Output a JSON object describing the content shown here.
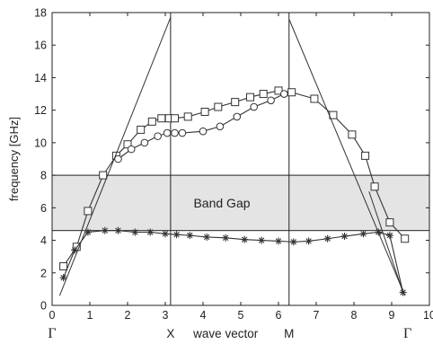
{
  "chart_data": {
    "type": "line",
    "title": "",
    "xlabel": "wave vector",
    "ylabel": "frequency [GHz]",
    "xlim": [
      0,
      10
    ],
    "ylim": [
      0,
      18
    ],
    "x_ticks": [
      "0",
      "1",
      "2",
      "3",
      "4",
      "5",
      "6",
      "7",
      "8",
      "9",
      "10"
    ],
    "y_ticks": [
      "0",
      "2",
      "4",
      "6",
      "8",
      "10",
      "12",
      "14",
      "16",
      "18"
    ],
    "symmetry_points": [
      {
        "label": "Γ",
        "x": 0
      },
      {
        "label": "X",
        "x": 3.14
      },
      {
        "label": "M",
        "x": 6.28
      },
      {
        "label": "Γ",
        "x": 9.42
      }
    ],
    "band_gap": {
      "label": "Band Gap",
      "y_min": 4.6,
      "y_max": 8.0
    },
    "vertical_lines": [
      3.14,
      6.28
    ],
    "series": [
      {
        "name": "",
        "marker": "square",
        "x": [
          0.3,
          0.65,
          0.95,
          1.35,
          1.7,
          2.0,
          2.35,
          2.65,
          2.9,
          3.1,
          3.25,
          3.6,
          4.05,
          4.4,
          4.85,
          5.25,
          5.6,
          6.0,
          6.35,
          6.95,
          7.45,
          7.95,
          8.3,
          8.55,
          8.95,
          9.35
        ],
        "y": [
          2.4,
          3.6,
          5.8,
          8.0,
          9.2,
          9.9,
          10.8,
          11.3,
          11.5,
          11.5,
          11.5,
          11.6,
          11.9,
          12.2,
          12.5,
          12.8,
          13.0,
          13.2,
          13.1,
          12.7,
          11.7,
          10.5,
          9.2,
          7.3,
          5.1,
          4.1
        ]
      },
      {
        "name": "",
        "marker": "circle",
        "x": [
          1.75,
          2.1,
          2.45,
          2.8,
          3.05,
          3.25,
          3.45,
          4.0,
          4.45,
          4.9,
          5.35,
          5.8,
          6.15
        ],
        "y": [
          9.0,
          9.6,
          10.0,
          10.4,
          10.6,
          10.6,
          10.6,
          10.7,
          11.0,
          11.6,
          12.2,
          12.6,
          13.0
        ]
      },
      {
        "name": "",
        "marker": "star",
        "x": [
          0.3,
          0.6,
          0.95,
          1.4,
          1.75,
          2.2,
          2.6,
          3.0,
          3.3,
          3.65,
          4.1,
          4.6,
          5.1,
          5.55,
          6.0,
          6.4,
          6.8,
          7.3,
          7.75,
          8.25,
          8.65,
          8.95,
          9.3
        ],
        "y": [
          1.7,
          3.4,
          4.5,
          4.6,
          4.6,
          4.5,
          4.5,
          4.4,
          4.35,
          4.3,
          4.2,
          4.15,
          4.05,
          4.0,
          3.95,
          3.9,
          3.95,
          4.1,
          4.25,
          4.4,
          4.5,
          4.3,
          0.8
        ]
      },
      {
        "name": "",
        "marker": "none",
        "x": [
          0.2,
          3.14
        ],
        "y": [
          0.6,
          17.7
        ]
      },
      {
        "name": "",
        "marker": "none",
        "x": [
          6.28,
          9.35
        ],
        "y": [
          17.6,
          0.6
        ]
      },
      {
        "name": "",
        "marker": "none",
        "x": [
          8.4,
          9.3
        ],
        "y": [
          7.0,
          0.8
        ]
      }
    ],
    "grid": false,
    "legend": "none"
  },
  "colors": {
    "band_fill": "#e4e4e4",
    "ink": "#333333",
    "axis": "#222222"
  }
}
